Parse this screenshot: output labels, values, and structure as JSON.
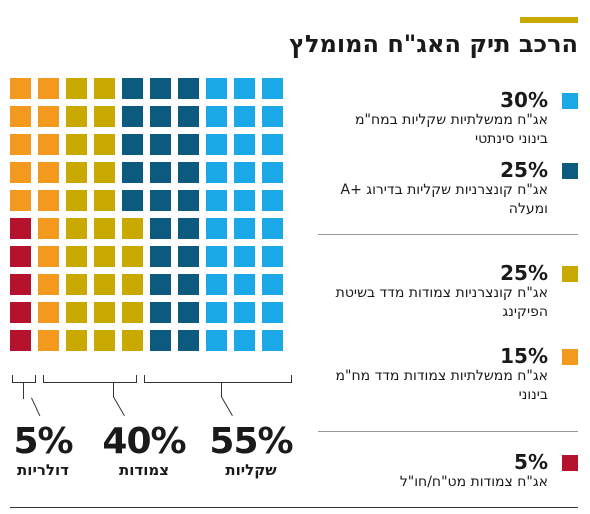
{
  "title": "הרכב תיק האג\"ח המומלץ",
  "chart_data": {
    "type": "waffle",
    "unit_percent": 2.5,
    "segments": [
      {
        "key": "gov_cpi",
        "value": 30,
        "color": "#1aa8e6",
        "pct": "30%",
        "text": "אג\"ח ממשלתיות שקליות במח\"מ בינוני סינתטי"
      },
      {
        "key": "corp_shekel",
        "value": 25,
        "color": "#0d5a7f",
        "pct": "25%",
        "text": "אג\"ח קונצרניות שקליות בדירוג +A ומעלה"
      },
      {
        "key": "corp_cpi",
        "value": 25,
        "color": "#c9a800",
        "pct": "25%",
        "text": "אג\"ח קונצרניות צמודות מדד בשיטת הפיקינג"
      },
      {
        "key": "gov_linked",
        "value": 15,
        "color": "#f39a1e",
        "pct": "15%",
        "text": "אג\"ח ממשלתיות צמודות מדד מח\"מ בינוני"
      },
      {
        "key": "fx",
        "value": 5,
        "color": "#b5122e",
        "pct": "5%",
        "text": "אג\"ח צמודות מט\"ח/חו\"ל"
      }
    ],
    "groups": [
      {
        "key": "shekel",
        "pct": "55%",
        "label": "שקליות",
        "value": 55
      },
      {
        "key": "linked",
        "pct": "40%",
        "label": "צמודות",
        "value": 40
      },
      {
        "key": "dollar",
        "pct": "5%",
        "label": "דולריות",
        "value": 5
      }
    ]
  }
}
